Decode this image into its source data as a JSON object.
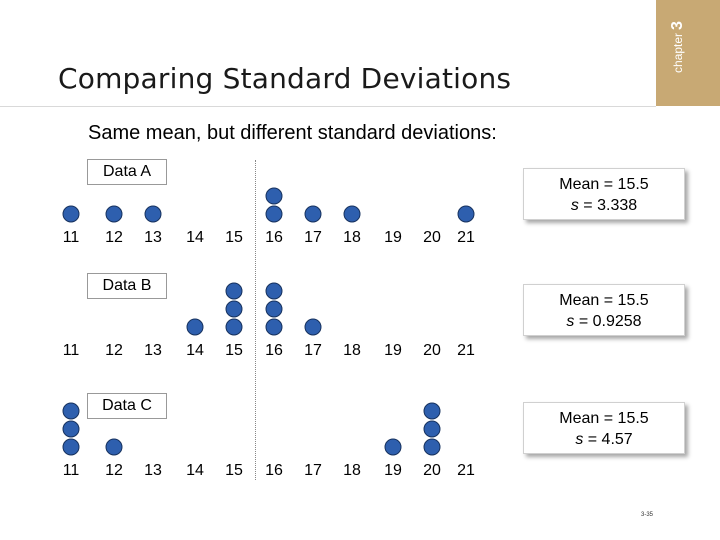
{
  "header": {
    "title": "Comparing Standard Deviations",
    "chapter_word": "chapter",
    "chapter_number": "3"
  },
  "subtitle": "Same mean, but different standard deviations:",
  "axis_values": [
    "11",
    "12",
    "13",
    "14",
    "15",
    "16",
    "17",
    "18",
    "19",
    "20",
    "21"
  ],
  "datasets": [
    {
      "label": "Data A",
      "mean_text": "Mean = 15.5",
      "s_symbol": "s",
      "s_text": " = 3.338",
      "counts": [
        1,
        1,
        1,
        0,
        0,
        2,
        1,
        1,
        0,
        0,
        1
      ]
    },
    {
      "label": "Data B",
      "mean_text": "Mean = 15.5",
      "s_symbol": "s",
      "s_text": " = 0.9258",
      "counts": [
        0,
        0,
        0,
        1,
        3,
        3,
        1,
        0,
        0,
        0,
        0
      ]
    },
    {
      "label": "Data C",
      "mean_text": "Mean = 15.5",
      "s_symbol": "s",
      "s_text": " = 4.57",
      "counts": [
        3,
        1,
        0,
        0,
        0,
        0,
        0,
        0,
        1,
        3,
        0
      ]
    }
  ],
  "page_number": "3-35",
  "colors": {
    "dot": "#2e5fae",
    "chapter_tab": "#c8a974"
  }
}
